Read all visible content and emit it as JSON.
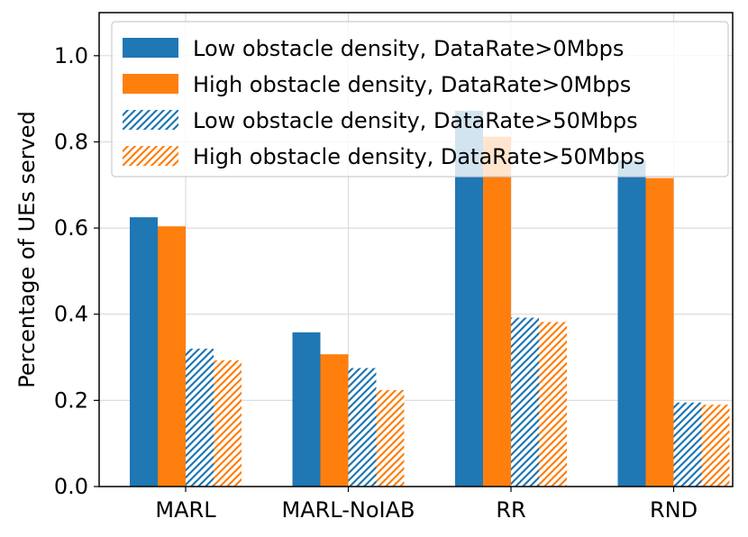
{
  "chart_data": {
    "type": "bar",
    "title": "",
    "xlabel": "",
    "ylabel": "Percentage of UEs served",
    "ylim": [
      0,
      1.1
    ],
    "yticks": [
      "0.0",
      "0.2",
      "0.4",
      "0.6",
      "0.8",
      "1.0"
    ],
    "categories": [
      "MARL",
      "MARL-NoIAB",
      "RR",
      "RND"
    ],
    "grid": true,
    "legend_position": "top-right",
    "series": [
      {
        "name": "Low obstacle density, DataRate>0Mbps",
        "color": "#1f77b4",
        "hatched": false,
        "values": [
          0.625,
          0.358,
          0.872,
          0.757
        ]
      },
      {
        "name": "High obstacle density, DataRate>0Mbps",
        "color": "#ff7f0e",
        "hatched": false,
        "values": [
          0.604,
          0.307,
          0.812,
          0.716
        ]
      },
      {
        "name": "Low obstacle density, DataRate>50Mbps",
        "color": "#1f77b4",
        "hatched": true,
        "values": [
          0.32,
          0.275,
          0.392,
          0.195
        ]
      },
      {
        "name": "High obstacle density, DataRate>50Mbps",
        "color": "#ff7f0e",
        "hatched": true,
        "values": [
          0.293,
          0.224,
          0.382,
          0.19
        ]
      }
    ]
  }
}
